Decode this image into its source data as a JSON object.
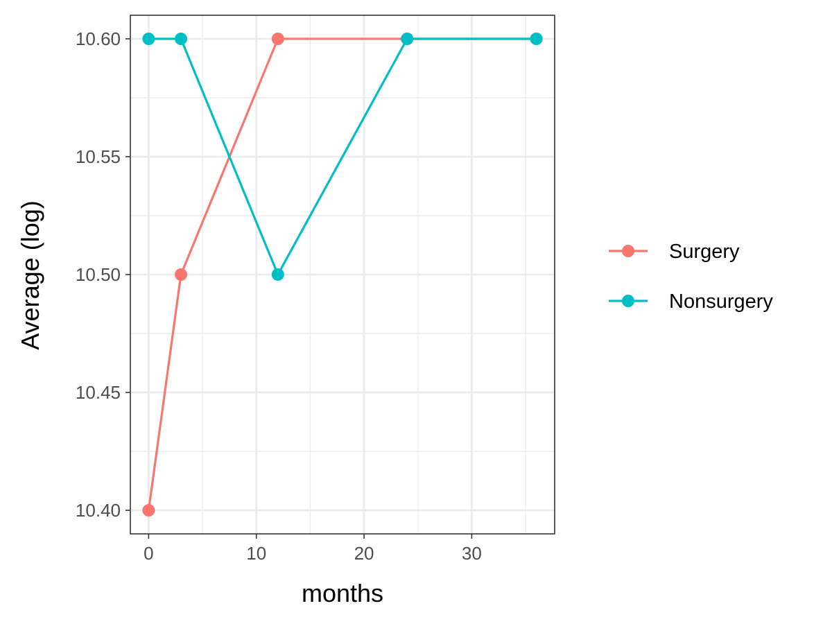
{
  "chart_data": {
    "type": "line",
    "title": "",
    "xlabel": "months",
    "ylabel": "Average (log)",
    "xlim": [
      -1.7,
      37.7
    ],
    "ylim": [
      10.39,
      10.61
    ],
    "x_ticks": [
      0,
      10,
      20,
      30
    ],
    "x_tick_labels": [
      "0",
      "10",
      "20",
      "30"
    ],
    "y_ticks": [
      10.4,
      10.45,
      10.5,
      10.55,
      10.6
    ],
    "y_tick_labels": [
      "10.40",
      "10.45",
      "10.50",
      "10.55",
      "10.60"
    ],
    "grid": true,
    "legend_position": "right",
    "series": [
      {
        "name": "Surgery",
        "color": "#F8766D",
        "points": [
          {
            "x": 0,
            "y": 10.4
          },
          {
            "x": 3,
            "y": 10.5
          },
          {
            "x": 12,
            "y": 10.6
          },
          {
            "x": 24,
            "y": 10.6
          },
          {
            "x": 36,
            "y": 10.6
          }
        ]
      },
      {
        "name": "Nonsurgery",
        "color": "#00BFC4",
        "points": [
          {
            "x": 0,
            "y": 10.6
          },
          {
            "x": 3,
            "y": 10.6
          },
          {
            "x": 12,
            "y": 10.5
          },
          {
            "x": 24,
            "y": 10.6
          },
          {
            "x": 36,
            "y": 10.6
          }
        ]
      }
    ]
  }
}
